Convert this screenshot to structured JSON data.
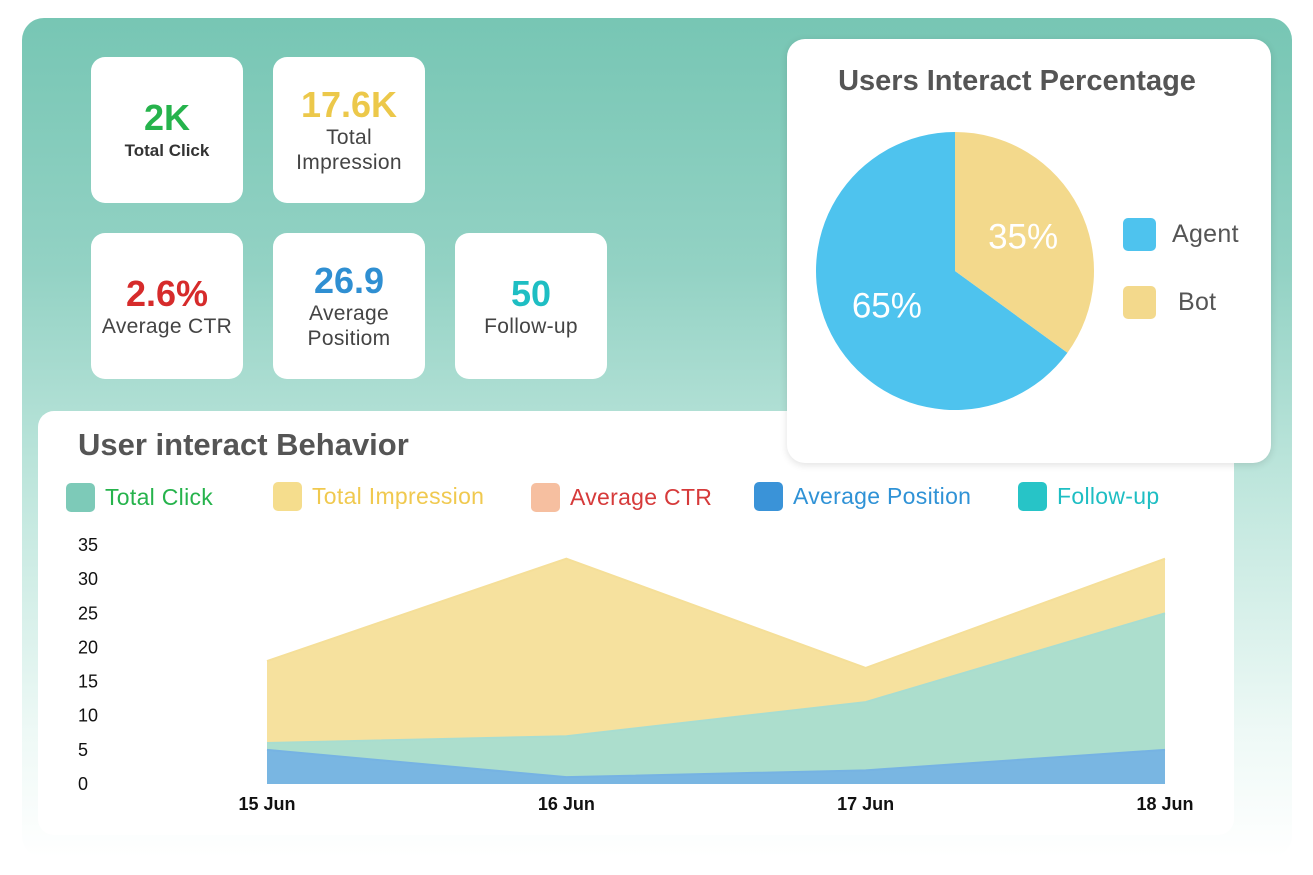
{
  "stats": {
    "total_click": {
      "value": "2K",
      "label": "Total Click",
      "color": "#26b34c"
    },
    "total_impression": {
      "value": "17.6K",
      "label": "Total Impression",
      "color": "#ecc84a"
    },
    "average_ctr": {
      "value": "2.6%",
      "label": "Average CTR",
      "color": "#d62b2b"
    },
    "average_position": {
      "value": "26.9",
      "label": "Average Positiom",
      "color": "#2f8fd2"
    },
    "follow_up": {
      "value": "50",
      "label": "Follow-up",
      "color": "#1ebec3"
    }
  },
  "pie": {
    "title": "Users Interact Percentage",
    "legend": [
      {
        "label": "Agent",
        "color": "#4ec3ee"
      },
      {
        "label": "Bot",
        "color": "#f3d98c"
      }
    ],
    "slice_labels": [
      "65%",
      "35%"
    ]
  },
  "area_chart": {
    "title": "User interact Behavior",
    "legend": [
      {
        "label": "Total Click",
        "color": "#26b34c",
        "swatch": "#7dcab8"
      },
      {
        "label": "Total Impression",
        "color": "#f0c94f",
        "swatch": "#f5dd8d"
      },
      {
        "label": "Average CTR",
        "color": "#d63a3a",
        "swatch": "#f6bfa0"
      },
      {
        "label": "Average Position",
        "color": "#2f92d6",
        "swatch": "#3a93d8"
      },
      {
        "label": "Follow-up",
        "color": "#1ebec3",
        "swatch": "#27c4c7"
      }
    ]
  },
  "chart_data": [
    {
      "type": "pie",
      "title": "Users Interact Percentage",
      "labels": [
        "Agent",
        "Bot"
      ],
      "values": [
        65,
        35
      ],
      "colors": [
        "#4ec3ee",
        "#f3d98c"
      ],
      "legend": "right"
    },
    {
      "type": "area",
      "title": "User interact Behavior",
      "categories": [
        "15 Jun",
        "16 Jun",
        "17 Jun",
        "18 Jun"
      ],
      "series": [
        {
          "name": "Total Impression",
          "values": [
            18,
            33,
            17,
            33
          ],
          "color": "#f5df99"
        },
        {
          "name": "Total Click",
          "values": [
            6,
            7,
            12,
            25
          ],
          "color": "#a8ddd0"
        },
        {
          "name": "Average Position",
          "values": [
            5,
            1,
            2,
            5
          ],
          "color": "#76b3e3"
        }
      ],
      "yticks": [
        0,
        5,
        10,
        15,
        20,
        25,
        30,
        35
      ],
      "ylim": [
        0,
        35
      ],
      "grid": false,
      "legend": "top"
    }
  ]
}
